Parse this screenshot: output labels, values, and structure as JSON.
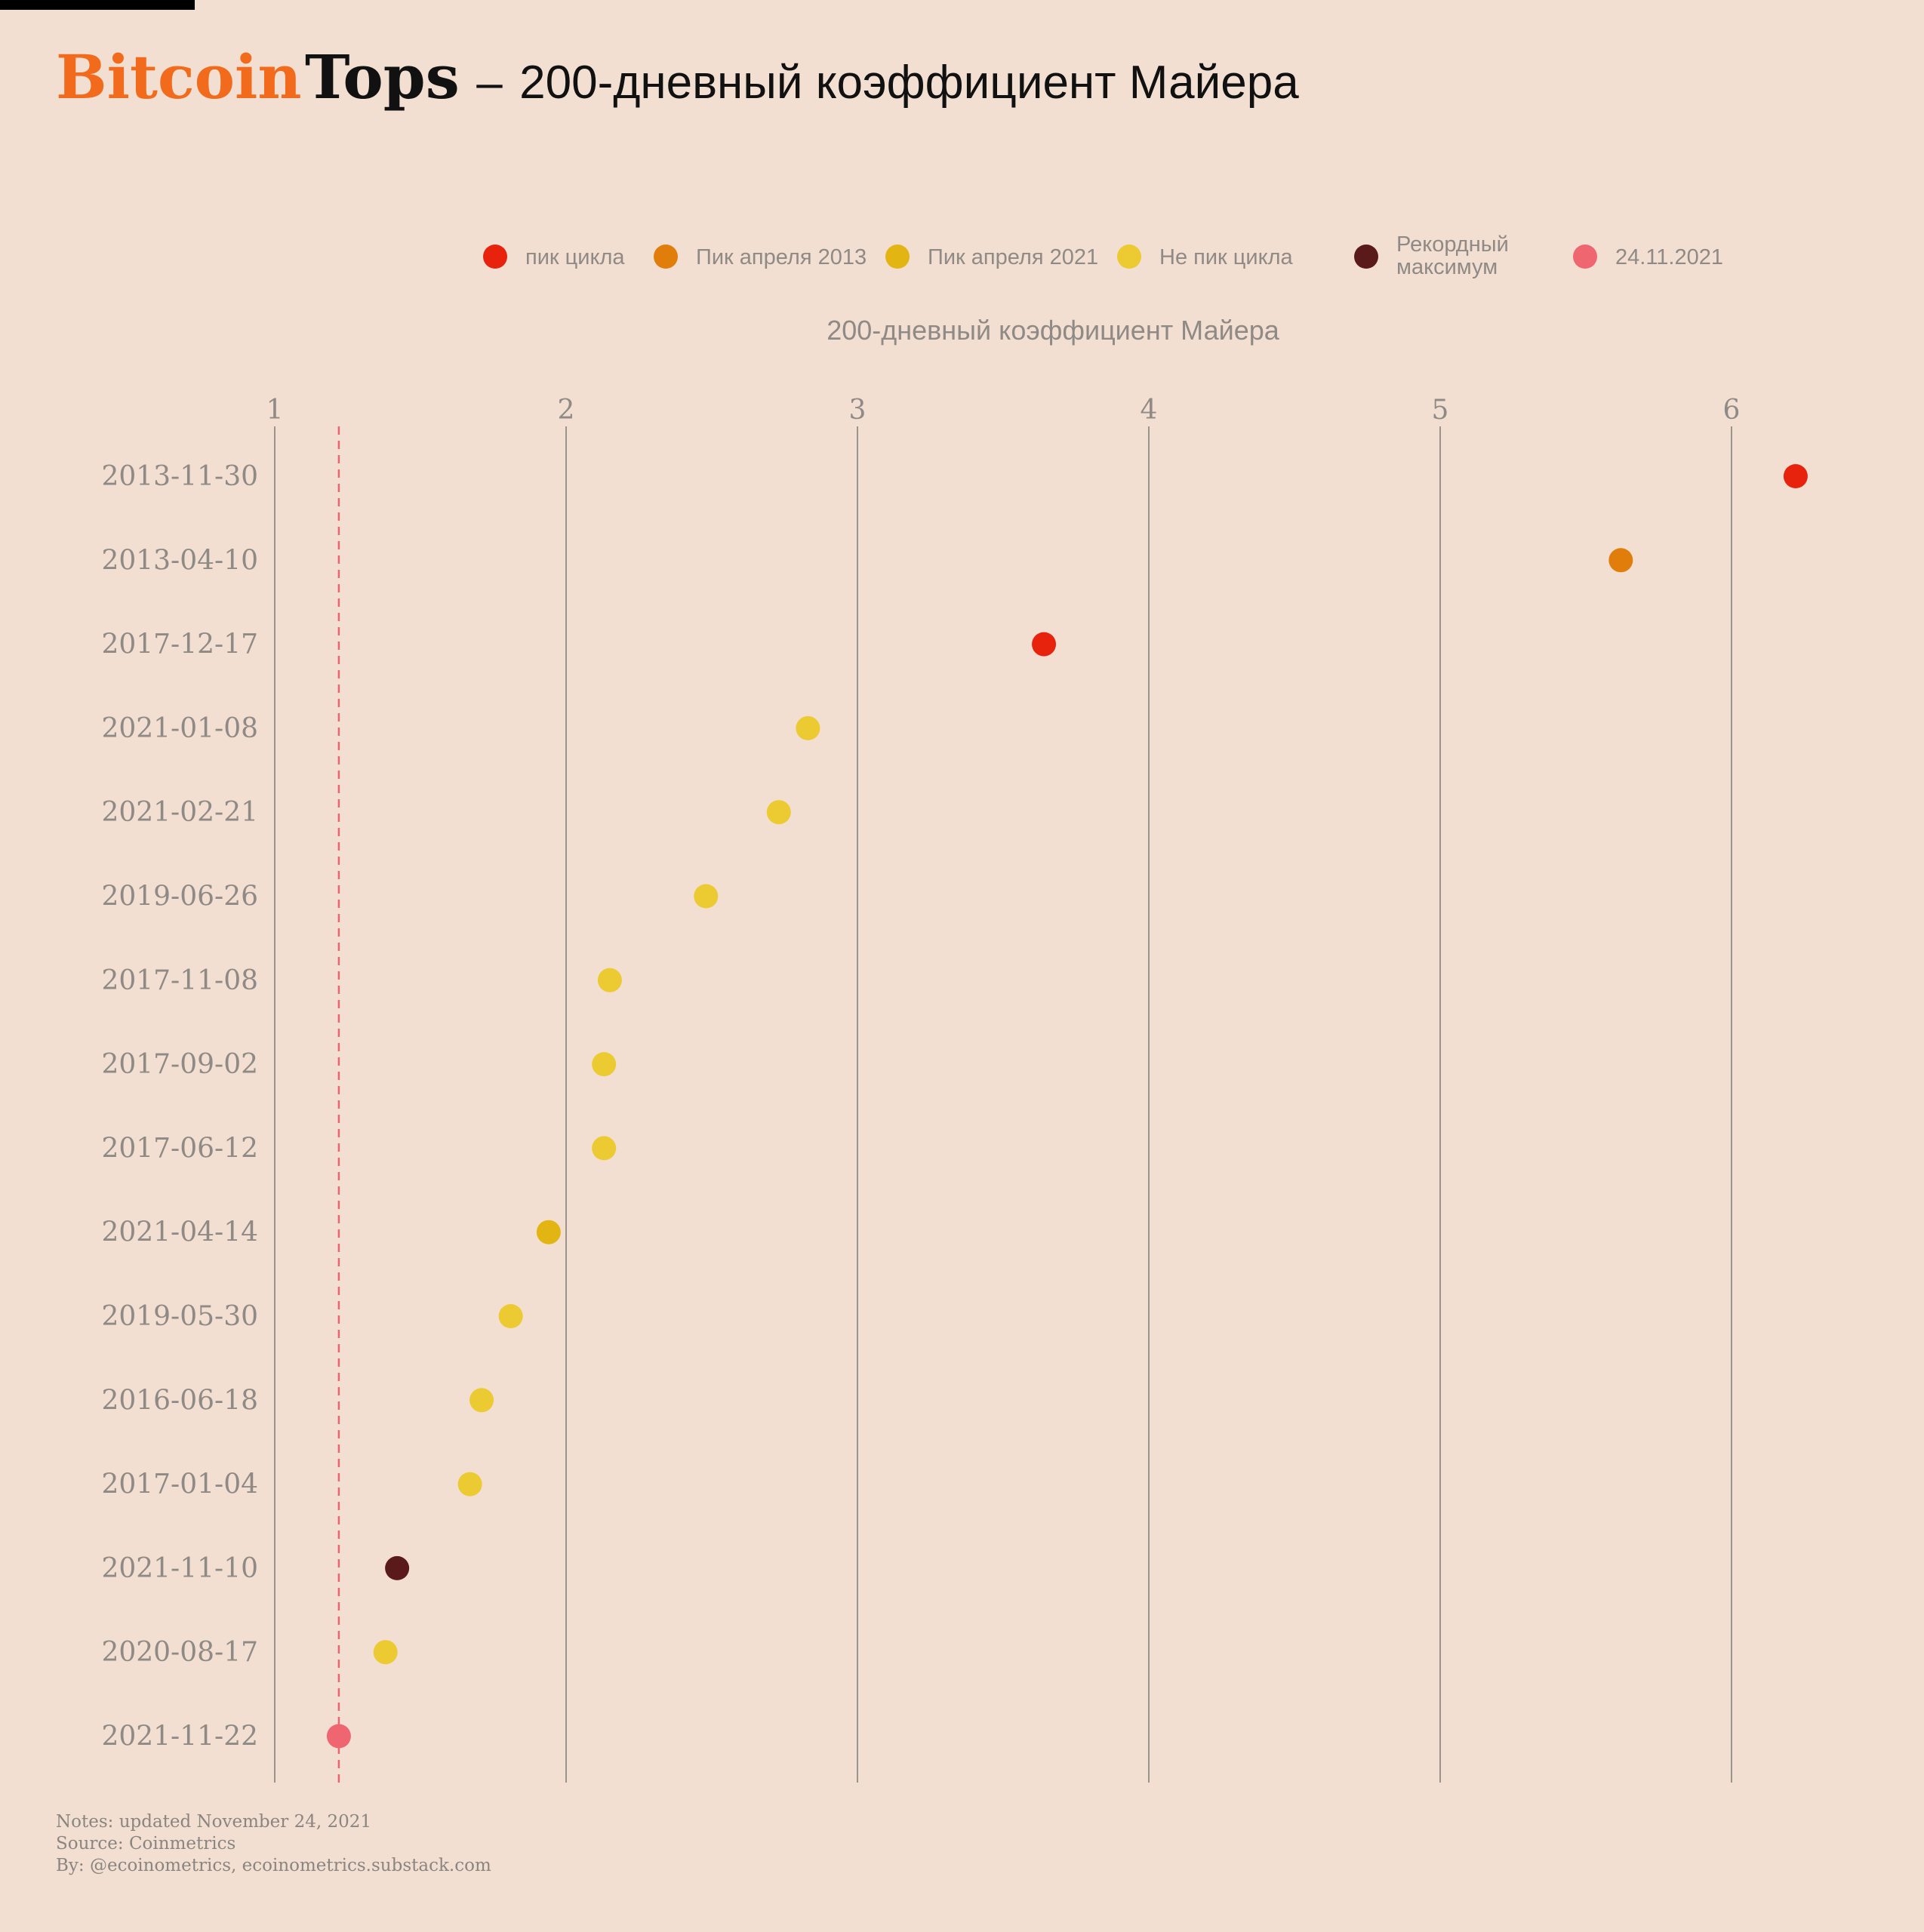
{
  "header": {
    "brand": "Bitcoin",
    "tops": "Tops",
    "separator": "–",
    "subtitle": "200-дневный коэффициент Майера"
  },
  "colors": {
    "background": "#f2dfd1",
    "brand": "#f26a1b",
    "gridline": "#9a948e",
    "reference_line": "#e86670",
    "axis_text": "#8f8a85"
  },
  "chart_data": {
    "type": "scatter",
    "orientation": "horizontal dot plot",
    "xlabel": "200-дневный коэффициент Майера",
    "xlim": [
      1,
      6
    ],
    "xticks": [
      1,
      2,
      3,
      4,
      5,
      6
    ],
    "xtick_position": "top",
    "grid": "vertical lines at each tick",
    "legend": {
      "placement": "top",
      "entries": [
        {
          "label": "пик цикла",
          "color": "#e8230d"
        },
        {
          "label": "Пик апреля 2013",
          "color": "#e17d0b"
        },
        {
          "label": "Пик апреля 2021",
          "color": "#e2b513"
        },
        {
          "label": "Не пик цикла",
          "color": "#ebca32"
        },
        {
          "label": "Рекордный максимум",
          "color": "#5a1a1a"
        },
        {
          "label": "24.11.2021",
          "color": "#f06670"
        }
      ]
    },
    "reference_line": {
      "x": 1.22,
      "style": "dashed",
      "color": "#e86670"
    },
    "points": [
      {
        "date": "2013-11-30",
        "value": 6.22,
        "category": "пик цикла"
      },
      {
        "date": "2013-04-10",
        "value": 5.62,
        "category": "Пик апреля 2013"
      },
      {
        "date": "2017-12-17",
        "value": 3.64,
        "category": "пик цикла"
      },
      {
        "date": "2021-01-08",
        "value": 2.83,
        "category": "Не пик цикла"
      },
      {
        "date": "2021-02-21",
        "value": 2.73,
        "category": "Не пик цикла"
      },
      {
        "date": "2019-06-26",
        "value": 2.48,
        "category": "Не пик цикла"
      },
      {
        "date": "2017-11-08",
        "value": 2.15,
        "category": "Не пик цикла"
      },
      {
        "date": "2017-09-02",
        "value": 2.13,
        "category": "Не пик цикла"
      },
      {
        "date": "2017-06-12",
        "value": 2.13,
        "category": "Не пик цикла"
      },
      {
        "date": "2021-04-14",
        "value": 1.94,
        "category": "Пик апреля 2021"
      },
      {
        "date": "2019-05-30",
        "value": 1.81,
        "category": "Не пик цикла"
      },
      {
        "date": "2016-06-18",
        "value": 1.71,
        "category": "Не пик цикла"
      },
      {
        "date": "2017-01-04",
        "value": 1.67,
        "category": "Не пик цикла"
      },
      {
        "date": "2021-11-10",
        "value": 1.42,
        "category": "Рекордный максимум"
      },
      {
        "date": "2020-08-17",
        "value": 1.38,
        "category": "Не пик цикла"
      },
      {
        "date": "2021-11-22",
        "value": 1.22,
        "category": "24.11.2021"
      }
    ]
  },
  "footer": {
    "notes": "Notes: updated November 24, 2021",
    "source": "Source: Coinmetrics",
    "by": "By: @ecoinometrics, ecoinometrics.substack.com"
  }
}
